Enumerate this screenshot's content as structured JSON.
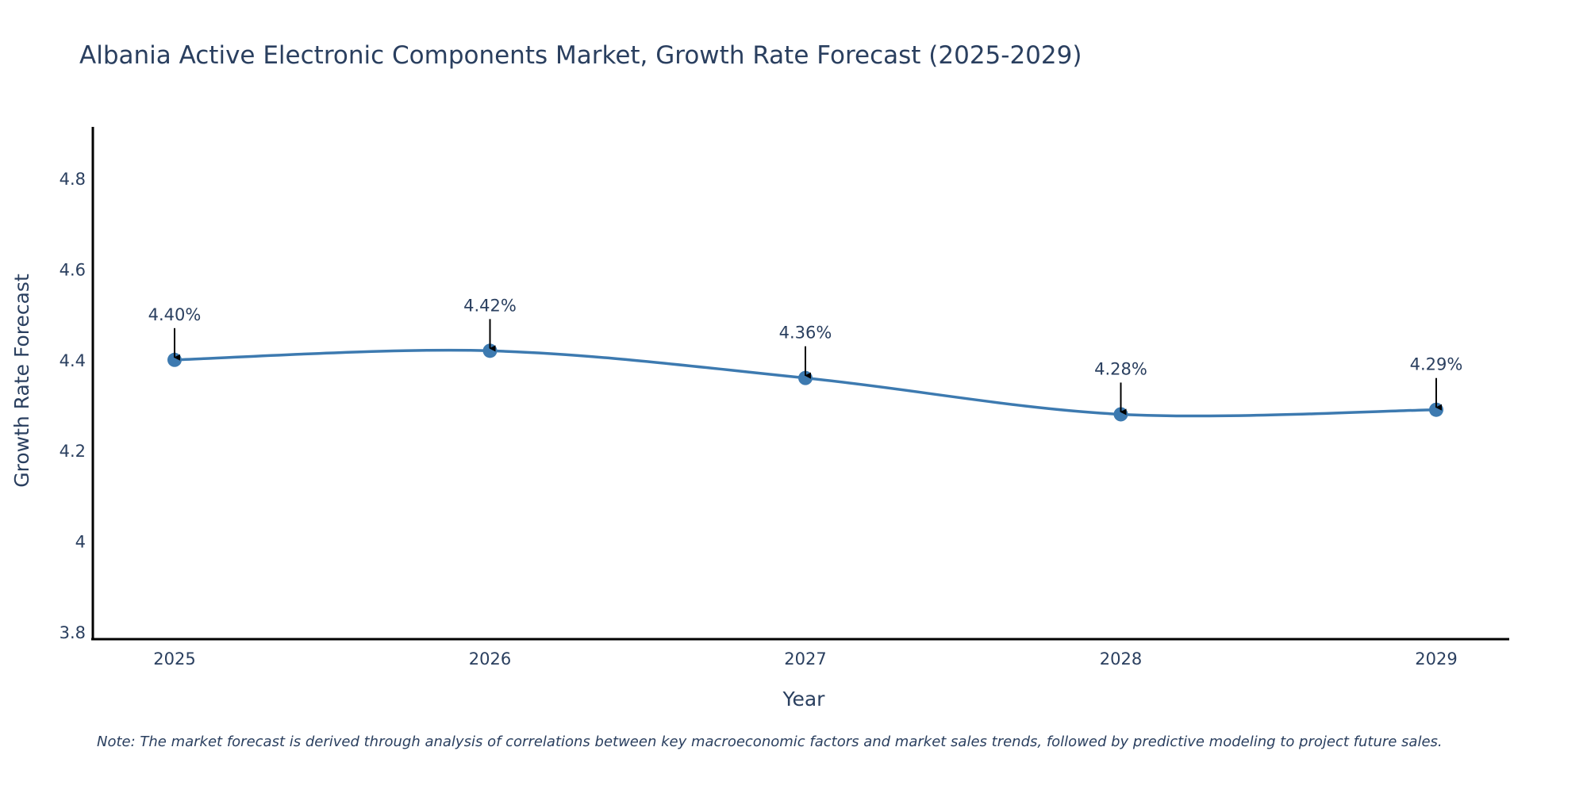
{
  "chart_data": {
    "type": "line",
    "title": "Albania Active Electronic Components Market, Growth Rate Forecast (2025-2029)",
    "xlabel": "Year",
    "ylabel": "Growth Rate Forecast",
    "categories": [
      "2025",
      "2026",
      "2027",
      "2028",
      "2029"
    ],
    "series": [
      {
        "name": "Growth Rate Forecast",
        "values": [
          4.4,
          4.42,
          4.36,
          4.28,
          4.29
        ],
        "labels": [
          "4.40%",
          "4.42%",
          "4.36%",
          "4.28%",
          "4.29%"
        ],
        "color": "#3d7ab0"
      }
    ],
    "ylim": [
      3.8,
      4.92
    ],
    "yticks": [
      3.8,
      4.0,
      4.2,
      4.4,
      4.6,
      4.8
    ],
    "ytick_labels": [
      "3.8",
      "4",
      "4.2",
      "4.4",
      "4.6",
      "4.8"
    ],
    "grid": false,
    "legend": "none",
    "line_shape": "spline",
    "annotation_arrows": true,
    "note": "Note: The market forecast is derived through analysis of correlations between key macroeconomic factors and market sales trends, followed by predictive modeling to project future sales."
  }
}
